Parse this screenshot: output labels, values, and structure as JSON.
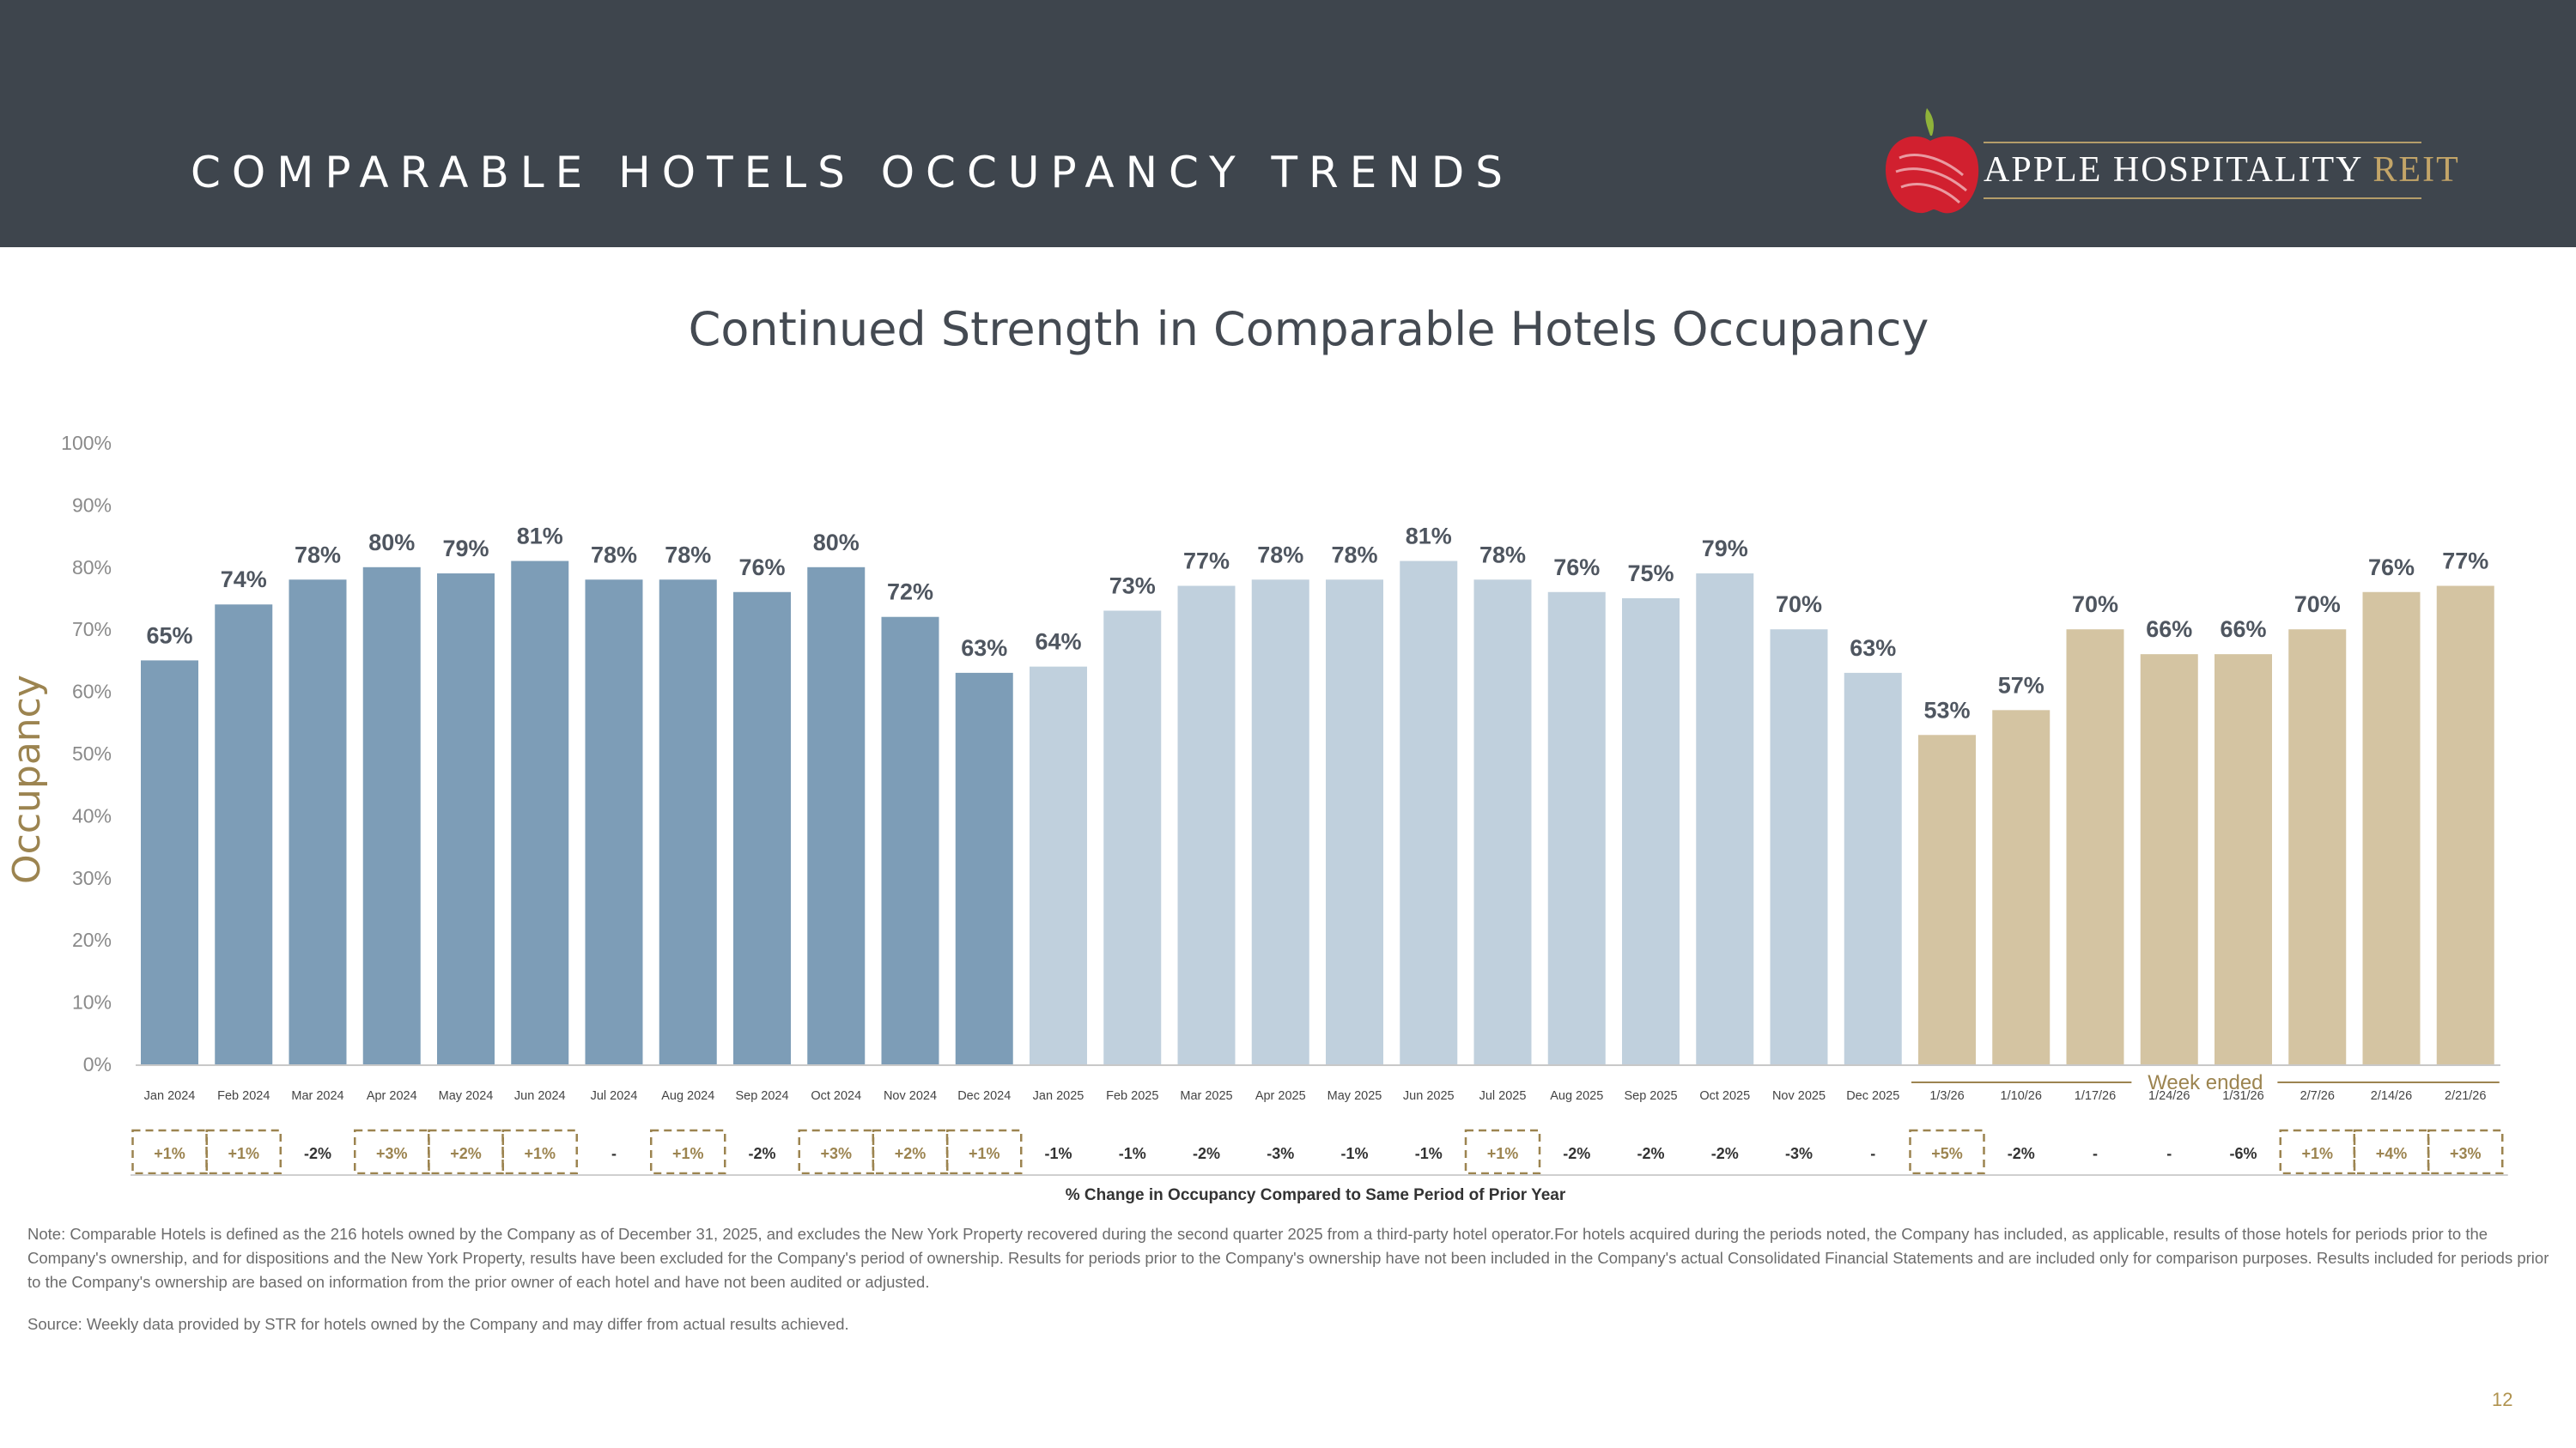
{
  "header": {
    "title": "COMPARABLE HOTELS OCCUPANCY TRENDS",
    "logo_main": "APPLE HOSPITALITY",
    "logo_accent": "REIT"
  },
  "colors": {
    "header_bg": "#3e454d",
    "bar_2024": "#7d9db7",
    "bar_2025": "#c0d0dd",
    "bar_weekly": "#d4c4a2",
    "accent_gold": "#9c8450",
    "logo_red": "#d1202f"
  },
  "chart_data": {
    "type": "bar",
    "title": "Continued Strength in Comparable Hotels Occupancy",
    "ylabel": "Occupancy",
    "ylim": [
      0,
      100
    ],
    "yticks": [
      "0%",
      "10%",
      "20%",
      "30%",
      "40%",
      "50%",
      "60%",
      "70%",
      "80%",
      "90%",
      "100%"
    ],
    "categories": [
      "Jan 2024",
      "Feb 2024",
      "Mar 2024",
      "Apr 2024",
      "May 2024",
      "Jun 2024",
      "Jul 2024",
      "Aug 2024",
      "Sep 2024",
      "Oct 2024",
      "Nov 2024",
      "Dec 2024",
      "Jan 2025",
      "Feb 2025",
      "Mar 2025",
      "Apr 2025",
      "May 2025",
      "Jun 2025",
      "Jul 2025",
      "Aug 2025",
      "Sep 2025",
      "Oct 2025",
      "Nov 2025",
      "Dec 2025",
      "1/3/26",
      "1/10/26",
      "1/17/26",
      "1/24/26",
      "1/31/26",
      "2/7/26",
      "2/14/26",
      "2/21/26"
    ],
    "values": [
      65,
      74,
      78,
      80,
      79,
      81,
      78,
      78,
      76,
      80,
      72,
      63,
      64,
      73,
      77,
      78,
      78,
      81,
      78,
      76,
      75,
      79,
      70,
      63,
      53,
      57,
      70,
      66,
      66,
      70,
      76,
      77
    ],
    "data_labels": [
      "65%",
      "74%",
      "78%",
      "80%",
      "79%",
      "81%",
      "78%",
      "78%",
      "76%",
      "80%",
      "72%",
      "63%",
      "64%",
      "73%",
      "77%",
      "78%",
      "78%",
      "81%",
      "78%",
      "76%",
      "75%",
      "79%",
      "70%",
      "63%",
      "53%",
      "57%",
      "70%",
      "66%",
      "66%",
      "70%",
      "76%",
      "77%"
    ],
    "series_groups": [
      "2024",
      "2024",
      "2024",
      "2024",
      "2024",
      "2024",
      "2024",
      "2024",
      "2024",
      "2024",
      "2024",
      "2024",
      "2025",
      "2025",
      "2025",
      "2025",
      "2025",
      "2025",
      "2025",
      "2025",
      "2025",
      "2025",
      "2025",
      "2025",
      "weekly",
      "weekly",
      "weekly",
      "weekly",
      "weekly",
      "weekly",
      "weekly",
      "weekly"
    ],
    "pct_change": [
      "+1%",
      "+1%",
      "-2%",
      "+3%",
      "+2%",
      "+1%",
      "-",
      "+1%",
      "-2%",
      "+3%",
      "+2%",
      "+1%",
      "-1%",
      "-1%",
      "-2%",
      "-3%",
      "-1%",
      "-1%",
      "+1%",
      "-2%",
      "-2%",
      "-2%",
      "-3%",
      "-",
      "+5%",
      "-2%",
      "-",
      "-",
      "-6%",
      "+1%",
      "+4%",
      "+3%"
    ],
    "positive_boxed": [
      true,
      true,
      false,
      true,
      true,
      true,
      false,
      true,
      false,
      true,
      true,
      true,
      false,
      false,
      false,
      false,
      false,
      false,
      true,
      false,
      false,
      false,
      false,
      false,
      true,
      false,
      false,
      false,
      false,
      true,
      true,
      true
    ],
    "week_group_label": "Week ended",
    "change_caption": "% Change in Occupancy Compared to Same Period of Prior Year"
  },
  "note": "Note: Comparable Hotels is defined as the 216 hotels owned by the Company as of December 31, 2025, and excludes the New York Property recovered during the second quarter 2025 from a third-party hotel operator.For hotels acquired during the periods noted, the Company has included, as applicable, results of those hotels for periods prior to the Company's ownership, and for dispositions and the New York Property, results have been excluded for the Company's period of ownership. Results for periods prior to the Company's ownership have not been included in the Company's actual Consolidated Financial Statements and are included only for comparison purposes. Results included for periods prior to the Company's ownership are based on information from the prior owner of each hotel and have not been audited or adjusted.",
  "source": "Source:  Weekly data provided by STR for hotels owned by the Company and may differ from actual results achieved.",
  "page_number": "12"
}
